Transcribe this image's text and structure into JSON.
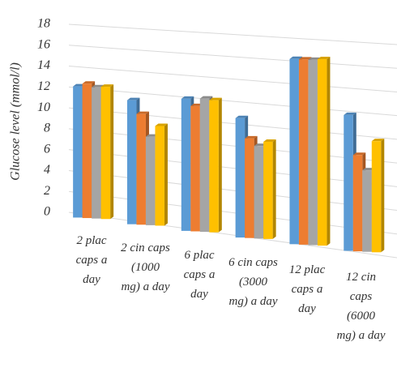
{
  "chart_data": {
    "type": "bar3d",
    "y_label": "Glucose level (mmol/l)",
    "categories": [
      "2 plac caps a day",
      "2 cin caps (1000 mg) a day",
      "6 plac caps a day",
      "6 cin caps (3000 mg) a day",
      "12 plac caps a day",
      "12 cin caps (6000 mg) a day"
    ],
    "series": [
      {
        "color": "#5b9bd5",
        "values": [
          12.2,
          11.2,
          11.6,
          10.2,
          15.4,
          11.0
        ]
      },
      {
        "color": "#ed7d31",
        "values": [
          12.5,
          10.0,
          11.0,
          8.5,
          15.4,
          7.8
        ]
      },
      {
        "color": "#a5a5a5",
        "values": [
          12.2,
          8.0,
          11.7,
          7.9,
          15.4,
          6.6
        ]
      },
      {
        "color": "#ffc000",
        "values": [
          12.3,
          9.0,
          11.6,
          8.3,
          15.5,
          9.0
        ]
      }
    ],
    "ylim": [
      0,
      18
    ],
    "yticks": [
      0,
      2,
      4,
      6,
      8,
      10,
      12,
      14,
      16,
      18
    ],
    "grid": true
  }
}
